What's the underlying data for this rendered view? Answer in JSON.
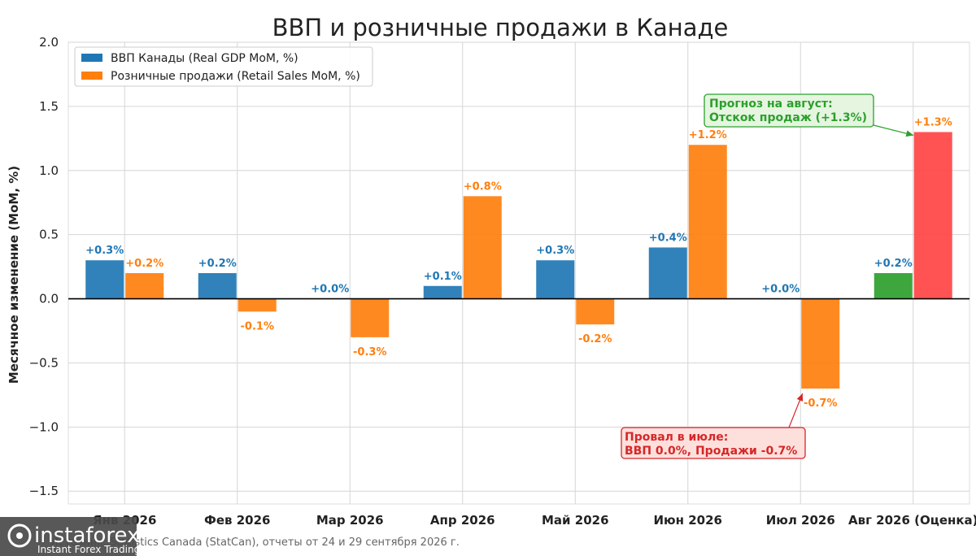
{
  "chart_data": {
    "type": "bar",
    "title": "ВВП и розничные продажи в Канаде",
    "ylabel": "Месячное изменение (MoM, %)",
    "xlabel": "",
    "ylim": [
      -1.6,
      2.0
    ],
    "yticks": [
      -1.5,
      -1.0,
      -0.5,
      0.0,
      0.5,
      1.0,
      1.5,
      2.0
    ],
    "ytick_labels": [
      "−1.5",
      "−1.0",
      "−0.5",
      "0.0",
      "0.5",
      "1.0",
      "1.5",
      "2.0"
    ],
    "grid": true,
    "legend_position": "top-left",
    "categories": [
      "Янв 2026",
      "Фев 2026",
      "Мар 2026",
      "Апр 2026",
      "Май 2026",
      "Июн 2026",
      "Июл 2026",
      "Авг 2026 (Оценка)"
    ],
    "series": [
      {
        "name": "ВВП Канады (Real GDP MoM, %)",
        "color": "#1f77b4",
        "values": [
          0.3,
          0.2,
          0.0,
          0.1,
          0.3,
          0.4,
          0.0,
          0.2
        ],
        "labels": [
          "+0.3%",
          "+0.2%",
          "+0.0%",
          "+0.1%",
          "+0.3%",
          "+0.4%",
          "+0.0%",
          "+0.2%"
        ],
        "label_color": "#1f77b4",
        "highlight": {
          "index": 7,
          "color": "#2ca02c"
        }
      },
      {
        "name": "Розничные продажи (Retail Sales MoM, %)",
        "color": "#ff7f0e",
        "values": [
          0.2,
          -0.1,
          -0.3,
          0.8,
          -0.2,
          1.2,
          -0.7,
          1.3
        ],
        "labels": [
          "+0.2%",
          "-0.1%",
          "-0.3%",
          "+0.8%",
          "-0.2%",
          "+1.2%",
          "-0.7%",
          "+1.3%"
        ],
        "label_color": "#ff7f0e",
        "highlight": {
          "index": 7,
          "color": "#ff4444"
        }
      }
    ],
    "annotations": [
      {
        "lines": [
          "Прогноз на август:",
          "Отскок продаж (+1.3%)"
        ],
        "color": "#2ca02c",
        "fill": "#e5f5e0",
        "target": {
          "category": 7,
          "value": 1.3
        }
      },
      {
        "lines": [
          "Провал в июле:",
          "ВВП 0.0%, Продажи -0.7%"
        ],
        "color": "#d62728",
        "fill": "#fde0dc",
        "target": {
          "category": 6,
          "value": -0.7
        }
      }
    ],
    "source": "Источник: Statistics Canada (StatCan), отчеты от 24 и 29 сентября 2026 г."
  },
  "watermark": {
    "brand": "instaforex",
    "tagline": "Instant Forex Trading"
  }
}
